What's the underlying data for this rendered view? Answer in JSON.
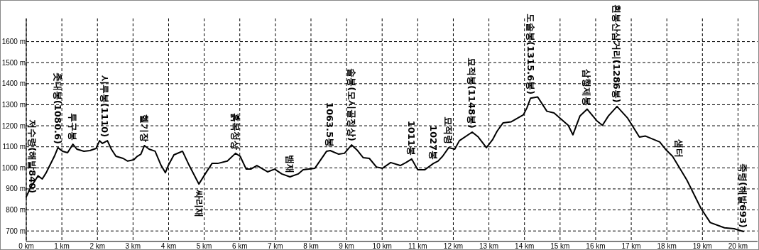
{
  "chart_data": {
    "type": "line",
    "x": [
      0,
      0.13,
      0.26,
      0.33,
      0.45,
      0.56,
      0.66,
      0.79,
      0.89,
      1.02,
      1.16,
      1.31,
      1.42,
      1.62,
      1.79,
      1.96,
      2.06,
      2.14,
      2.28,
      2.39,
      2.52,
      2.72,
      2.85,
      3.02,
      3.12,
      3.22,
      3.32,
      3.45,
      3.62,
      3.79,
      3.91,
      3.99,
      4.15,
      4.39,
      4.58,
      4.85,
      5.05,
      5.22,
      5.38,
      5.65,
      5.88,
      6.01,
      6.18,
      6.31,
      6.48,
      6.78,
      6.98,
      7.18,
      7.41,
      7.64,
      7.78,
      8.11,
      8.44,
      8.54,
      8.78,
      8.94,
      9.14,
      9.31,
      9.47,
      9.64,
      9.84,
      10.01,
      10.24,
      10.51,
      10.67,
      10.83,
      11.0,
      11.2,
      11.44,
      11.57,
      11.7,
      11.87,
      12.04,
      12.17,
      12.53,
      12.7,
      12.93,
      13.1,
      13.23,
      13.4,
      13.63,
      13.97,
      14.07,
      14.17,
      14.37,
      14.63,
      14.83,
      15.23,
      15.36,
      15.56,
      15.76,
      16.03,
      16.19,
      16.36,
      16.6,
      16.9,
      17.23,
      17.4,
      17.8,
      17.96,
      18.16,
      18.56,
      18.96,
      19.22,
      19.62,
      19.89,
      20.15
    ],
    "series": [
      {
        "color": "#000000",
        "values": [
          862,
          910,
          943,
          962,
          947,
          977,
          1011,
          1055,
          1096,
          1079,
          1072,
          1112,
          1089,
          1079,
          1082,
          1092,
          1129,
          1116,
          1129,
          1089,
          1055,
          1045,
          1032,
          1038,
          1055,
          1065,
          1106,
          1089,
          1079,
          1011,
          977,
          1011,
          1062,
          1079,
          1011,
          923,
          977,
          1021,
          1021,
          1032,
          1069,
          1055,
          994,
          994,
          1011,
          981,
          994,
          971,
          957,
          971,
          991,
          998,
          1079,
          1082,
          1065,
          1069,
          1109,
          1082,
          1048,
          1045,
          1004,
          998,
          1025,
          1011,
          1025,
          1042,
          991,
          991,
          1021,
          1032,
          1055,
          1096,
          1089,
          1129,
          1170,
          1147,
          1096,
          1133,
          1174,
          1214,
          1219,
          1252,
          1286,
          1331,
          1337,
          1269,
          1261,
          1202,
          1157,
          1247,
          1279,
          1224,
          1202,
          1247,
          1292,
          1236,
          1146,
          1151,
          1123,
          1089,
          1055,
          943,
          807,
          740,
          715,
          711,
          697
        ]
      }
    ],
    "xlim": [
      0,
      20.55
    ],
    "xticks": [
      {
        "value": 0,
        "label": "0 km"
      },
      {
        "value": 1,
        "label": "1 km"
      },
      {
        "value": 2,
        "label": "2 km"
      },
      {
        "value": 3,
        "label": "3 km"
      },
      {
        "value": 4,
        "label": "4 km"
      },
      {
        "value": 5,
        "label": "5 km"
      },
      {
        "value": 6,
        "label": "6 km"
      },
      {
        "value": 7,
        "label": "7 km"
      },
      {
        "value": 8,
        "label": "8 km"
      },
      {
        "value": 9,
        "label": "9 km"
      },
      {
        "value": 10,
        "label": "10 km"
      },
      {
        "value": 11,
        "label": "11 km"
      },
      {
        "value": 12,
        "label": "12 km"
      },
      {
        "value": 13,
        "label": "13 km"
      },
      {
        "value": 14,
        "label": "14 km"
      },
      {
        "value": 15,
        "label": "15 km"
      },
      {
        "value": 16,
        "label": "16 km"
      },
      {
        "value": 17,
        "label": "17 km"
      },
      {
        "value": 18,
        "label": "18 km"
      },
      {
        "value": 19,
        "label": "19 km"
      },
      {
        "value": 20,
        "label": "20 km"
      }
    ],
    "ylim": [
      650,
      1710
    ],
    "yticks": [
      {
        "value": 700,
        "label": "700 m"
      },
      {
        "value": 800,
        "label": "800 m"
      },
      {
        "value": 900,
        "label": "900 m"
      },
      {
        "value": 1000,
        "label": "1000 m"
      },
      {
        "value": 1100,
        "label": "1100 m"
      },
      {
        "value": 1200,
        "label": "1200 m"
      },
      {
        "value": 1300,
        "label": "1300 m"
      },
      {
        "value": 1400,
        "label": "1400 m"
      },
      {
        "value": 1500,
        "label": "1500 m"
      },
      {
        "value": 1600,
        "label": "1600 m"
      }
    ],
    "grid": true,
    "line_style": "solid",
    "annotations": [
      {
        "text": "저수령(해발840)",
        "x": 0,
        "y": 862
      },
      {
        "text": "촛대봉(1080.6)",
        "x": 0.89,
        "y": 1096
      },
      {
        "text": "투구봉",
        "x": 1.31,
        "y": 1112
      },
      {
        "text": "시루봉(1110)",
        "x": 2.2,
        "y": 1129
      },
      {
        "text": "헬기장",
        "x": 3.32,
        "y": 1106
      },
      {
        "text": "싸리재",
        "x": 4.85,
        "y": 923
      },
      {
        "text": "흙목정상",
        "x": 5.88,
        "y": 1069
      },
      {
        "text": "뱀재",
        "x": 7.41,
        "y": 957
      },
      {
        "text": "1063.5봉",
        "x": 8.54,
        "y": 1082
      },
      {
        "text": "솔봉(모시골정상)",
        "x": 9.14,
        "y": 1109
      },
      {
        "text": "1011봉",
        "x": 10.83,
        "y": 1042
      },
      {
        "text": "1027봉",
        "x": 11.44,
        "y": 1021
      },
      {
        "text": "묘적령",
        "x": 11.87,
        "y": 1096
      },
      {
        "text": "묘적봉(1148봉)",
        "x": 12.53,
        "y": 1170
      },
      {
        "text": "도솔봉(1315.6봉)",
        "x": 14.17,
        "y": 1331
      },
      {
        "text": "삼형제봉",
        "x": 15.76,
        "y": 1279
      },
      {
        "text": "흰봉산삼거리(1286봉)",
        "x": 16.6,
        "y": 1292
      },
      {
        "text": "샘터",
        "x": 18.35,
        "y": 1030
      },
      {
        "text": "죽령(해발693)",
        "x": 20.15,
        "y": 697
      }
    ]
  }
}
